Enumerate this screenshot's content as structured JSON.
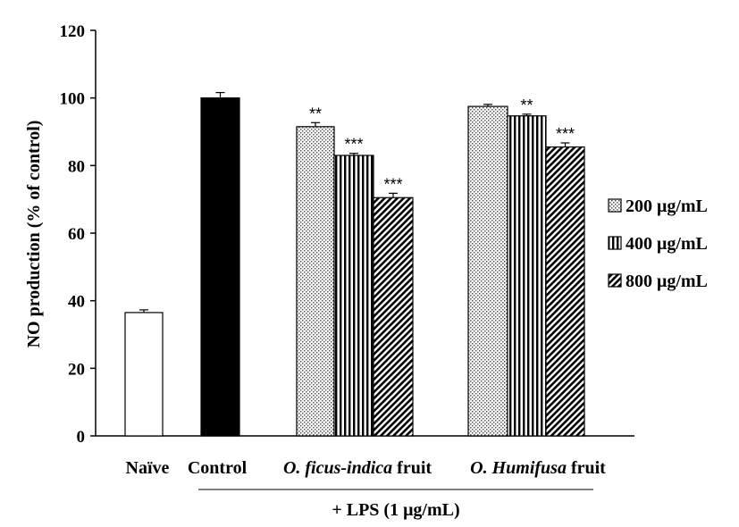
{
  "chart_data": {
    "type": "bar",
    "ylabel": "NO production (% of control)",
    "ylim": [
      0,
      120
    ],
    "yticks": [
      0,
      20,
      40,
      60,
      80,
      100,
      120
    ],
    "grid": false,
    "legend_position": "right",
    "categories": [
      {
        "label": "Naïve",
        "italic_part": "",
        "rest": ""
      },
      {
        "label": "Control",
        "italic_part": "",
        "rest": ""
      },
      {
        "label": "O. ficus-indica fruit",
        "italic_part": "O. ficus-indica",
        "rest": " fruit"
      },
      {
        "label": "O. Humifusa fruit",
        "italic_part": "O. Humifusa",
        "rest": " fruit"
      }
    ],
    "group_label": "+ LPS (1 μg/mL)",
    "bars": [
      {
        "category": "Naïve",
        "series": null,
        "value": 36.5,
        "error": 0.8,
        "sig": "",
        "pattern": "white"
      },
      {
        "category": "Control",
        "series": null,
        "value": 100,
        "error": 1.6,
        "sig": "",
        "pattern": "black"
      },
      {
        "category": "O. ficus-indica fruit",
        "series": "200 μg/mL",
        "value": 91.5,
        "error": 1.2,
        "sig": "**",
        "pattern": "dots"
      },
      {
        "category": "O. ficus-indica fruit",
        "series": "400 μg/mL",
        "value": 83,
        "error": 0.6,
        "sig": "***",
        "pattern": "vlines"
      },
      {
        "category": "O. ficus-indica fruit",
        "series": "800 μg/mL",
        "value": 70.5,
        "error": 1.3,
        "sig": "***",
        "pattern": "diag"
      },
      {
        "category": "O. Humifusa fruit",
        "series": "200 μg/mL",
        "value": 97.5,
        "error": 0.6,
        "sig": "",
        "pattern": "dots"
      },
      {
        "category": "O. Humifusa fruit",
        "series": "400 μg/mL",
        "value": 94.7,
        "error": 0.5,
        "sig": "**",
        "pattern": "vlines"
      },
      {
        "category": "O. Humifusa fruit",
        "series": "800 μg/mL",
        "value": 85.5,
        "error": 1.2,
        "sig": "***",
        "pattern": "diag"
      }
    ],
    "legend": [
      {
        "label": "200 μg/mL",
        "pattern": "dots"
      },
      {
        "label": "400 μg/mL",
        "pattern": "vlines"
      },
      {
        "label": "800 μg/mL",
        "pattern": "diag"
      }
    ]
  }
}
